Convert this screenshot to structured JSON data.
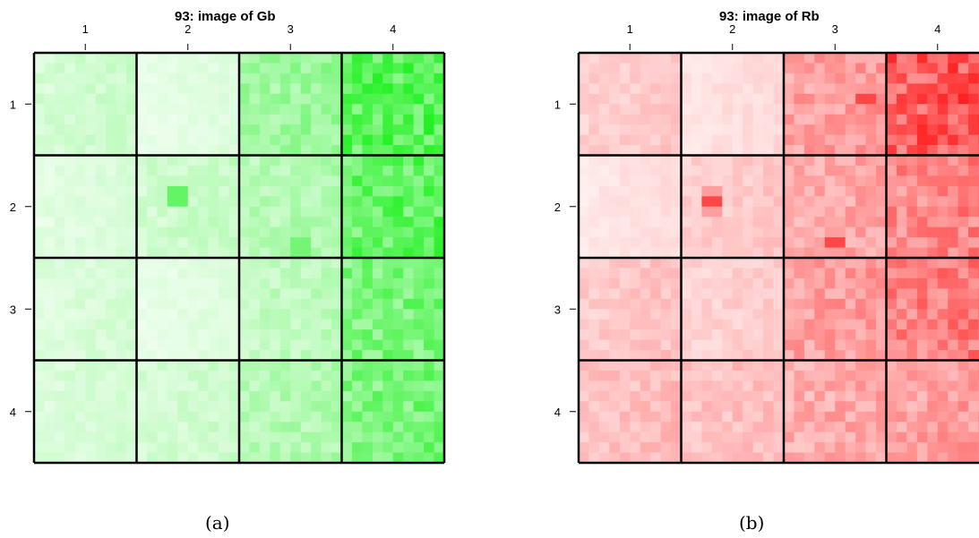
{
  "chart_data": [
    {
      "type": "heatmap",
      "title": "93: image of Gb",
      "caption": "(a)",
      "color_high": "#00ee00",
      "color_low": "#ffffff",
      "x_ticks": [
        "1",
        "2",
        "3",
        "4"
      ],
      "y_ticks": [
        "1",
        "2",
        "3",
        "4"
      ],
      "block_intensity": [
        [
          0.18,
          0.1,
          0.4,
          0.7
        ],
        [
          0.12,
          0.2,
          0.3,
          0.65
        ],
        [
          0.14,
          0.1,
          0.25,
          0.55
        ],
        [
          0.15,
          0.18,
          0.3,
          0.55
        ]
      ],
      "hotspots": [
        {
          "row": 1,
          "col": 3.55,
          "v": 1.0
        },
        {
          "row": 1.25,
          "col": 4.1,
          "v": 1.0
        },
        {
          "row": 1.9,
          "col": 1.9,
          "v": 1.0
        },
        {
          "row": 2.4,
          "col": 3.1,
          "v": 0.9
        }
      ]
    },
    {
      "type": "heatmap",
      "title": "93: image of Rb",
      "caption": "(b)",
      "color_high": "#ff0000",
      "color_low": "#ffffff",
      "x_ticks": [
        "1",
        "2",
        "3",
        "4"
      ],
      "y_ticks": [
        "1",
        "2",
        "3",
        "4"
      ],
      "block_intensity": [
        [
          0.2,
          0.12,
          0.4,
          0.7
        ],
        [
          0.1,
          0.2,
          0.35,
          0.5
        ],
        [
          0.22,
          0.18,
          0.4,
          0.55
        ],
        [
          0.25,
          0.25,
          0.35,
          0.4
        ]
      ],
      "hotspots": [
        {
          "row": 0.95,
          "col": 3.3,
          "v": 1.0
        },
        {
          "row": 1.3,
          "col": 3.95,
          "v": 1.0
        },
        {
          "row": 1.95,
          "col": 1.8,
          "v": 1.0
        },
        {
          "row": 2.35,
          "col": 3.0,
          "v": 1.0
        }
      ]
    }
  ]
}
